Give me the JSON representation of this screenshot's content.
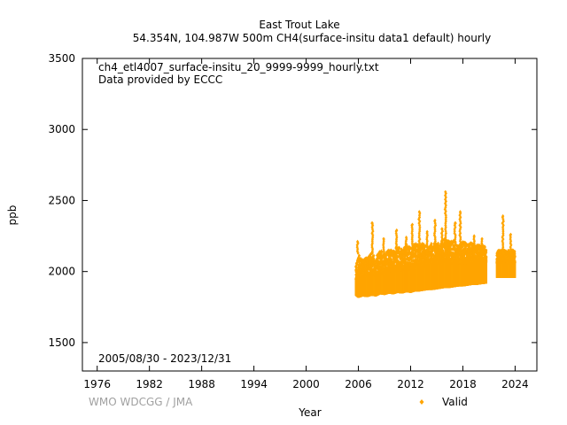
{
  "chart_data": {
    "type": "scatter",
    "title": "East Trout Lake",
    "subtitle": "54.354N, 104.987W 500m    CH4(surface-insitu data1 default) hourly",
    "annotations": [
      "ch4_etl4007_surface-insitu_20_9999-9999_hourly.txt",
      "Data provided by ECCC"
    ],
    "date_range_label": "2005/08/30 - 2023/12/31",
    "credit": "WMO WDCGG / JMA",
    "xlabel": "Year",
    "ylabel": "ppb",
    "xlim": [
      1974.3,
      2026.5
    ],
    "ylim": [
      1300,
      3500
    ],
    "x_ticks": [
      1976,
      1982,
      1988,
      1994,
      2000,
      2006,
      2012,
      2018,
      2024
    ],
    "y_ticks": [
      1500,
      2000,
      2500,
      3000,
      3500
    ],
    "grid": false,
    "legend_position": "bottom-right",
    "series": [
      {
        "name": "Valid",
        "color": "#ffa500",
        "marker": "diamond",
        "envelope": {
          "x": [
            2005.7,
            2006.0,
            2006.5,
            2007.0,
            2007.5,
            2008.0,
            2008.5,
            2009.0,
            2009.5,
            2010.0,
            2010.5,
            2011.0,
            2011.5,
            2012.0,
            2012.5,
            2013.0,
            2013.5,
            2014.0,
            2014.5,
            2015.0,
            2015.5,
            2016.0,
            2016.5,
            2017.0,
            2017.5,
            2018.0,
            2018.5,
            2019.0,
            2019.5,
            2020.0,
            2020.7
          ],
          "low": [
            1830,
            1815,
            1825,
            1820,
            1830,
            1825,
            1840,
            1835,
            1845,
            1840,
            1850,
            1845,
            1855,
            1850,
            1860,
            1860,
            1865,
            1870,
            1870,
            1875,
            1880,
            1885,
            1885,
            1890,
            1895,
            1895,
            1900,
            1905,
            1905,
            1910,
            1915
          ],
          "base": [
            1880,
            1880,
            1890,
            1890,
            1900,
            1900,
            1910,
            1910,
            1920,
            1920,
            1930,
            1930,
            1940,
            1945,
            1950,
            1950,
            1955,
            1960,
            1965,
            1965,
            1970,
            1975,
            1980,
            1985,
            1985,
            1990,
            1995,
            2000,
            2005,
            2005,
            2010
          ],
          "high": [
            2050,
            2120,
            2080,
            2100,
            2140,
            2100,
            2150,
            2130,
            2160,
            2150,
            2180,
            2160,
            2190,
            2170,
            2200,
            2190,
            2200,
            2180,
            2210,
            2200,
            2220,
            2230,
            2210,
            2220,
            2180,
            2220,
            2190,
            2210,
            2200,
            2190,
            2170
          ]
        },
        "segment2": {
          "x_start": 2021.9,
          "x_end": 2023.99,
          "low": 1955,
          "base": 2020,
          "high": 2150
        },
        "spikes": [
          {
            "x": 2005.9,
            "y": 2210
          },
          {
            "x": 2007.6,
            "y": 2340
          },
          {
            "x": 2008.9,
            "y": 2230
          },
          {
            "x": 2010.4,
            "y": 2290
          },
          {
            "x": 2011.5,
            "y": 2240
          },
          {
            "x": 2012.2,
            "y": 2330
          },
          {
            "x": 2013.0,
            "y": 2420
          },
          {
            "x": 2013.9,
            "y": 2280
          },
          {
            "x": 2014.8,
            "y": 2360
          },
          {
            "x": 2015.6,
            "y": 2300
          },
          {
            "x": 2016.0,
            "y": 2560
          },
          {
            "x": 2017.1,
            "y": 2340
          },
          {
            "x": 2017.7,
            "y": 2420
          },
          {
            "x": 2019.3,
            "y": 2250
          },
          {
            "x": 2020.2,
            "y": 2230
          },
          {
            "x": 2022.6,
            "y": 2390
          },
          {
            "x": 2023.5,
            "y": 2260
          }
        ]
      }
    ]
  }
}
